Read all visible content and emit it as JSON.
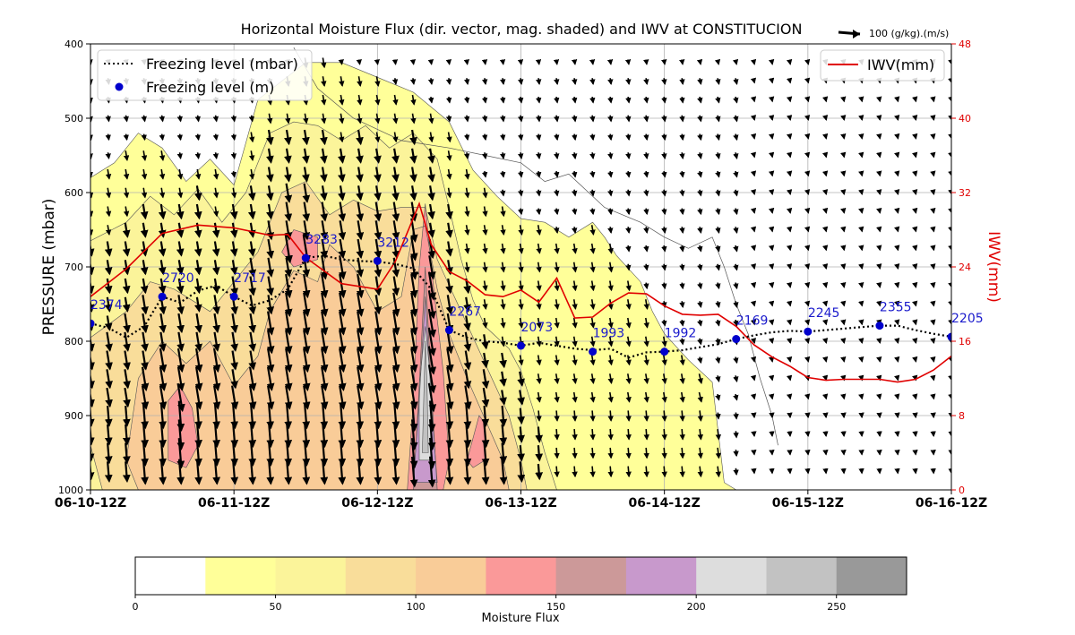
{
  "chart_data": {
    "type": "contour",
    "title": "Horizontal Moisture Flux (dir. vector, mag. shaded) and IWV at CONSTITUCION",
    "vector_key_label": "100 (g/kg).(m/s)",
    "ylabel": "PRESSURE (mbar)",
    "y2label": "IWV(mm)",
    "ylim": [
      1000,
      400
    ],
    "y_ticks": [
      "400",
      "500",
      "600",
      "700",
      "800",
      "900",
      "1000"
    ],
    "y2lim": [
      0,
      48
    ],
    "y2_ticks": [
      "0",
      "8",
      "16",
      "24",
      "32",
      "40",
      "48"
    ],
    "x_ticks": [
      "06-10-12Z",
      "06-11-12Z",
      "06-12-12Z",
      "06-13-12Z",
      "06-14-12Z",
      "06-15-12Z",
      "06-16-12Z"
    ],
    "xlim": [
      0,
      144
    ],
    "legend_left": {
      "placement": "upper left",
      "items": [
        "Freezing level (mbar)",
        "Freezing level (m)"
      ]
    },
    "legend_right": {
      "placement": "upper right",
      "items": [
        "IWV(mm)"
      ]
    },
    "colorbar": {
      "label": "Moisture Flux",
      "bounds": [
        0,
        25,
        50,
        75,
        100,
        125,
        150,
        175,
        200,
        225,
        250,
        275
      ],
      "tick_labels": [
        "0",
        "50",
        "100",
        "150",
        "200",
        "250"
      ],
      "colors": [
        "#ffffff",
        "#ffff99",
        "#fbf49a",
        "#f9dd9a",
        "#f9cc98",
        "#fa9999",
        "#cc9999",
        "#c899cc",
        "#dddddd",
        "#c2c2c2",
        "#999999"
      ]
    },
    "freezing_level_mbar": {
      "x": [
        0,
        3,
        6,
        9,
        12,
        15,
        18,
        21,
        24,
        27,
        30,
        33,
        36,
        39,
        42,
        45,
        48,
        51,
        54,
        57,
        60,
        63,
        66,
        69,
        72,
        75,
        78,
        81,
        84,
        87,
        90,
        93,
        96,
        99,
        102,
        105,
        108,
        111,
        114,
        117,
        120,
        123,
        126,
        129,
        132,
        135,
        138,
        141,
        144
      ],
      "y": [
        776,
        782,
        795,
        780,
        740,
        748,
        732,
        725,
        740,
        752,
        745,
        730,
        688,
        685,
        690,
        692,
        693,
        696,
        702,
        730,
        785,
        795,
        800,
        802,
        806,
        802,
        806,
        810,
        812,
        810,
        822,
        815,
        814,
        812,
        808,
        804,
        797,
        792,
        788,
        786,
        787,
        785,
        783,
        781,
        779,
        779,
        785,
        790,
        794
      ]
    },
    "freezing_level_m": {
      "x": [
        0,
        12,
        24,
        36,
        48,
        60,
        72,
        84,
        96,
        108,
        120,
        132,
        144
      ],
      "y": [
        776,
        740,
        740,
        688,
        692,
        785,
        806,
        814,
        814,
        797,
        787,
        779,
        794
      ],
      "labels": [
        "2374",
        "2720",
        "2717",
        "3283",
        "3212",
        "2267",
        "2073",
        "1993",
        "1992",
        "2169",
        "2245",
        "2355",
        "2205"
      ]
    },
    "iwv_mm": {
      "x": [
        0,
        6,
        12,
        18,
        24,
        30,
        33,
        36,
        42,
        48,
        51,
        55,
        57,
        60,
        63,
        66,
        69,
        72,
        75,
        78,
        81,
        84,
        87,
        90,
        93,
        96,
        99,
        102,
        105,
        108,
        111,
        114,
        117,
        120,
        123,
        126,
        129,
        132,
        135,
        138,
        141,
        144
      ],
      "y": [
        20.8,
        23.8,
        27.6,
        28.5,
        28.2,
        27.4,
        27.5,
        25.0,
        22.2,
        21.6,
        24.6,
        30.8,
        26.4,
        23.5,
        22.5,
        21.0,
        20.8,
        21.5,
        20.2,
        22.8,
        18.5,
        18.6,
        20.1,
        21.2,
        21.1,
        19.8,
        18.9,
        18.8,
        18.9,
        17.6,
        15.6,
        14.3,
        13.3,
        12.1,
        11.8,
        11.9,
        11.9,
        11.9,
        11.6,
        11.9,
        12.9,
        14.4
      ]
    },
    "contours": [
      {
        "level": 25,
        "points": [
          [
            0,
            820
          ],
          [
            0,
            580
          ],
          [
            4,
            560
          ],
          [
            8,
            520
          ],
          [
            12,
            540
          ],
          [
            16,
            585
          ],
          [
            20,
            555
          ],
          [
            24,
            590
          ],
          [
            28,
            475
          ],
          [
            32,
            450
          ],
          [
            36,
            425
          ],
          [
            42,
            425
          ],
          [
            48,
            445
          ],
          [
            54,
            465
          ],
          [
            60,
            505
          ],
          [
            64,
            570
          ],
          [
            68,
            605
          ],
          [
            72,
            635
          ],
          [
            76,
            640
          ],
          [
            80,
            660
          ],
          [
            84,
            640
          ],
          [
            86,
            660
          ],
          [
            88,
            685
          ],
          [
            92,
            720
          ],
          [
            94,
            760
          ],
          [
            96,
            790
          ],
          [
            100,
            825
          ],
          [
            104,
            855
          ],
          [
            106,
            990
          ],
          [
            108,
            1000
          ],
          [
            0,
            1000
          ]
        ]
      },
      {
        "level": 50,
        "points": [
          [
            0,
            880
          ],
          [
            0,
            665
          ],
          [
            6,
            640
          ],
          [
            10,
            605
          ],
          [
            14,
            630
          ],
          [
            18,
            595
          ],
          [
            22,
            640
          ],
          [
            26,
            600
          ],
          [
            30,
            520
          ],
          [
            34,
            505
          ],
          [
            38,
            510
          ],
          [
            42,
            530
          ],
          [
            46,
            510
          ],
          [
            50,
            540
          ],
          [
            54,
            520
          ],
          [
            58,
            555
          ],
          [
            60,
            620
          ],
          [
            62,
            690
          ],
          [
            64,
            745
          ],
          [
            66,
            780
          ],
          [
            70,
            810
          ],
          [
            72,
            840
          ],
          [
            74,
            890
          ],
          [
            76,
            950
          ],
          [
            78,
            1000
          ],
          [
            0,
            1000
          ]
        ]
      },
      {
        "level": 75,
        "points": [
          [
            0,
            940
          ],
          [
            0,
            795
          ],
          [
            6,
            760
          ],
          [
            10,
            720
          ],
          [
            14,
            730
          ],
          [
            20,
            760
          ],
          [
            24,
            720
          ],
          [
            28,
            680
          ],
          [
            32,
            600
          ],
          [
            36,
            585
          ],
          [
            40,
            630
          ],
          [
            44,
            610
          ],
          [
            48,
            625
          ],
          [
            52,
            620
          ],
          [
            56,
            620
          ],
          [
            58,
            690
          ],
          [
            62,
            760
          ],
          [
            66,
            830
          ],
          [
            70,
            900
          ],
          [
            72,
            960
          ],
          [
            73,
            1000
          ],
          [
            2,
            1000
          ]
        ]
      },
      {
        "level": 100,
        "points": [
          [
            6,
            960
          ],
          [
            8,
            850
          ],
          [
            12,
            800
          ],
          [
            16,
            830
          ],
          [
            20,
            800
          ],
          [
            24,
            860
          ],
          [
            28,
            820
          ],
          [
            30,
            760
          ],
          [
            34,
            705
          ],
          [
            38,
            720
          ],
          [
            40,
            670
          ],
          [
            44,
            700
          ],
          [
            48,
            760
          ],
          [
            52,
            740
          ],
          [
            54,
            650
          ],
          [
            56,
            645
          ],
          [
            58,
            730
          ],
          [
            60,
            790
          ],
          [
            63,
            850
          ],
          [
            66,
            905
          ],
          [
            69,
            960
          ],
          [
            70,
            1000
          ],
          [
            8,
            1000
          ]
        ]
      },
      {
        "level": 125,
        "points": [
          [
            13,
            880
          ],
          [
            15,
            860
          ],
          [
            17,
            890
          ],
          [
            18,
            940
          ],
          [
            16,
            970
          ],
          [
            13,
            960
          ]
        ]
      },
      {
        "level": 125,
        "points": [
          [
            32,
            680
          ],
          [
            34,
            650
          ],
          [
            38,
            660
          ],
          [
            38,
            690
          ],
          [
            34,
            700
          ]
        ]
      },
      {
        "level": 125,
        "points": [
          [
            53,
            1000
          ],
          [
            54,
            880
          ],
          [
            55,
            700
          ],
          [
            56,
            615
          ],
          [
            57,
            700
          ],
          [
            59,
            840
          ],
          [
            60,
            960
          ],
          [
            59,
            1000
          ]
        ]
      },
      {
        "level": 125,
        "points": [
          [
            63,
            960
          ],
          [
            65,
            900
          ],
          [
            66,
            910
          ],
          [
            66,
            960
          ],
          [
            64,
            970
          ]
        ]
      },
      {
        "level": 150,
        "points": [
          [
            54,
            1000
          ],
          [
            55,
            860
          ],
          [
            56,
            700
          ],
          [
            57,
            860
          ],
          [
            58,
            1000
          ]
        ]
      },
      {
        "level": 175,
        "points": [
          [
            54,
            990
          ],
          [
            55,
            880
          ],
          [
            56,
            740
          ],
          [
            57,
            880
          ],
          [
            58,
            990
          ]
        ]
      },
      {
        "level": 200,
        "points": [
          [
            55,
            960
          ],
          [
            55,
            860
          ],
          [
            56,
            780
          ],
          [
            57,
            860
          ],
          [
            57,
            960
          ]
        ]
      },
      {
        "level": 225,
        "points": [
          [
            55.5,
            950
          ],
          [
            55.8,
            860
          ],
          [
            56,
            800
          ],
          [
            56.3,
            860
          ],
          [
            56.5,
            950
          ]
        ]
      }
    ],
    "zero_contour_line": [
      [
        34,
        405
      ],
      [
        38,
        460
      ],
      [
        44,
        500
      ],
      [
        52,
        530
      ],
      [
        60,
        540
      ],
      [
        66,
        550
      ],
      [
        72,
        560
      ],
      [
        76,
        585
      ],
      [
        80,
        575
      ],
      [
        86,
        620
      ],
      [
        92,
        640
      ],
      [
        96,
        660
      ],
      [
        100,
        675
      ],
      [
        104,
        660
      ],
      [
        106,
        700
      ],
      [
        108,
        750
      ],
      [
        110,
        790
      ],
      [
        112,
        850
      ],
      [
        114,
        900
      ],
      [
        115,
        940
      ]
    ],
    "vectors": {
      "x_step_hours": 3,
      "pressure_levels": [
        425,
        450,
        475,
        500,
        525,
        550,
        575,
        600,
        625,
        650,
        675,
        700,
        725,
        750,
        775,
        800,
        825,
        850,
        875,
        900,
        925,
        950,
        975
      ],
      "direction_deg_from_vertical": 25
    }
  }
}
